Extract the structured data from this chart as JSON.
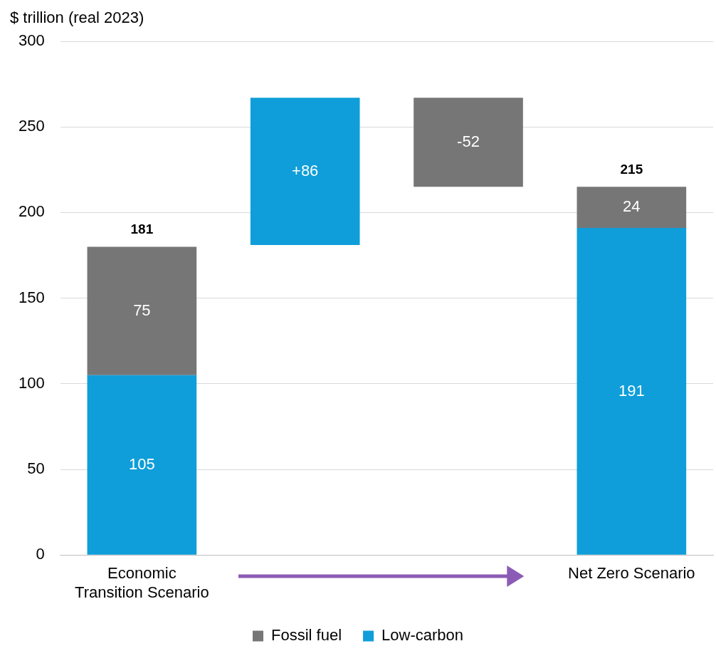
{
  "chart_data": {
    "type": "bar",
    "ylabel": "$ trillion (real 2023)",
    "categories": [
      "Economic Transition Scenario",
      null,
      null,
      "Net Zero Scenario"
    ],
    "stacked": true,
    "series": [
      {
        "name": "Low-carbon",
        "color": "#0f9ed9",
        "values": [
          105,
          86,
          null,
          191
        ],
        "base": [
          null,
          181,
          null,
          null
        ],
        "value_labels": [
          "105",
          "+86",
          null,
          "191"
        ]
      },
      {
        "name": "Fossil fuel",
        "color": "#767676",
        "values": [
          75,
          null,
          -52,
          24
        ],
        "base": [
          null,
          null,
          267,
          null
        ],
        "value_labels": [
          "75",
          null,
          "-52",
          "24"
        ]
      }
    ],
    "totals": [
      "181",
      null,
      null,
      "215"
    ],
    "ylim": [
      0,
      300
    ],
    "yticks": [
      0,
      50,
      100,
      150,
      200,
      250,
      300
    ],
    "grid": "y",
    "legend": "bottom"
  }
}
